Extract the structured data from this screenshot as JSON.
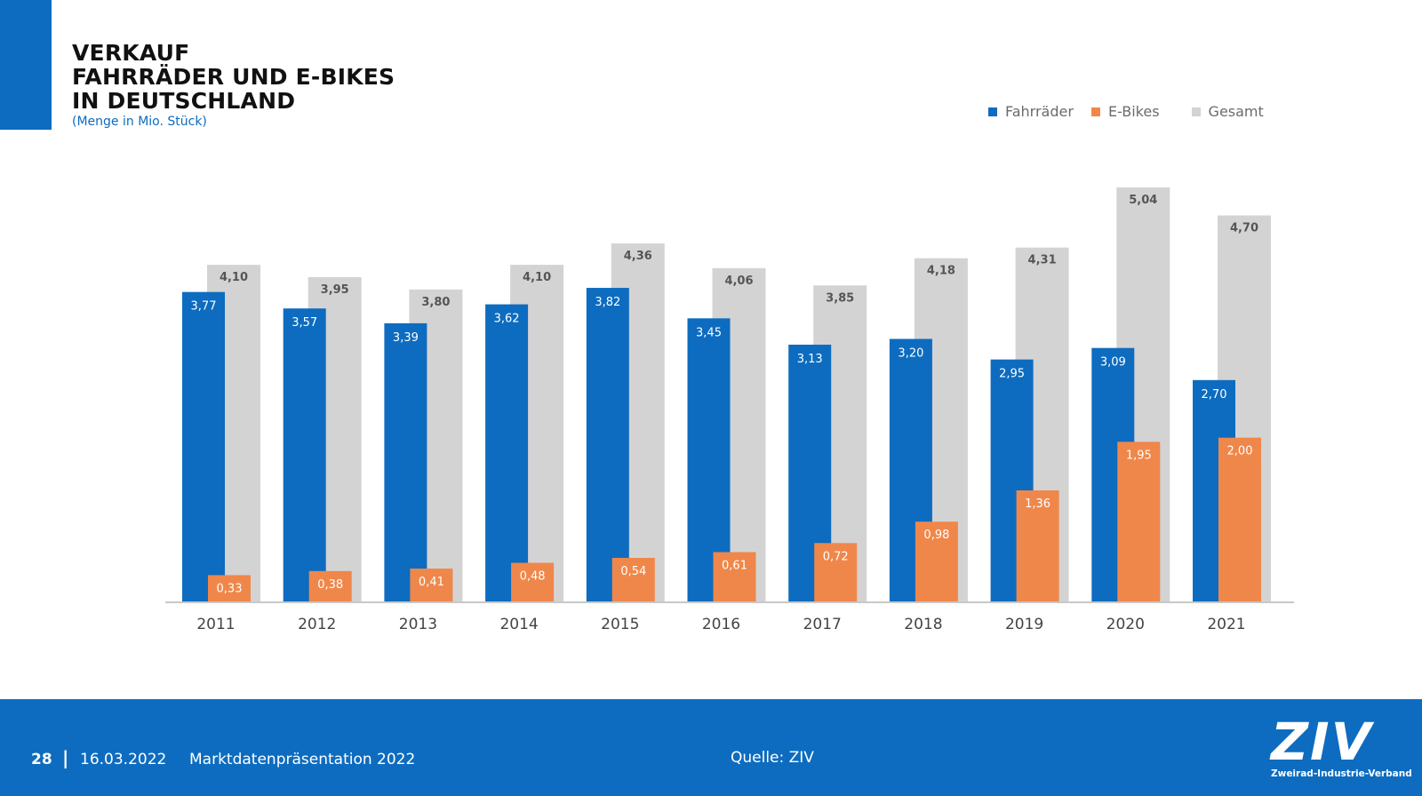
{
  "title": {
    "lines": [
      "VERKAUF",
      "FAHRRÄDER UND E-BIKES",
      "IN DEUTSCHLAND"
    ],
    "subtitle": "(Menge in Mio. Stück)"
  },
  "colors": {
    "fahrraeder": "#0d6cbf",
    "ebikes": "#f0874a",
    "gesamt": "#d4d3d3",
    "accent": "#0d6cbf"
  },
  "legend": [
    {
      "label": "Fahrräder",
      "color": "#0d6cbf"
    },
    {
      "label": "E-Bikes",
      "color": "#f0874a"
    },
    {
      "label": "Gesamt",
      "color": "#d4d3d3"
    }
  ],
  "chart_data": {
    "type": "bar",
    "categories": [
      "2011",
      "2012",
      "2013",
      "2014",
      "2015",
      "2016",
      "2017",
      "2018",
      "2019",
      "2020",
      "2021"
    ],
    "series": [
      {
        "name": "Fahrräder",
        "values": [
          3.77,
          3.57,
          3.39,
          3.62,
          3.82,
          3.45,
          3.13,
          3.2,
          2.95,
          3.09,
          2.7
        ],
        "labels": [
          "3,77",
          "3,57",
          "3,39",
          "3,62",
          "3,82",
          "3,45",
          "3,13",
          "3,20",
          "2,95",
          "3,09",
          "2,70"
        ]
      },
      {
        "name": "E-Bikes",
        "values": [
          0.33,
          0.38,
          0.41,
          0.48,
          0.54,
          0.61,
          0.72,
          0.98,
          1.36,
          1.95,
          2.0
        ],
        "labels": [
          "0,33",
          "0,38",
          "0,41",
          "0,48",
          "0,54",
          "0,61",
          "0,72",
          "0,98",
          "1,36",
          "1,95",
          "2,00"
        ]
      },
      {
        "name": "Gesamt",
        "values": [
          4.1,
          3.95,
          3.8,
          4.1,
          4.36,
          4.06,
          3.85,
          4.18,
          4.31,
          5.04,
          4.7
        ],
        "labels": [
          "4,10",
          "3,95",
          "3,80",
          "4,10",
          "4,36",
          "4,06",
          "3,85",
          "4,18",
          "4,31",
          "5,04",
          "4,70"
        ]
      }
    ],
    "ylim": [
      0,
      5.04
    ],
    "grid": false,
    "legend_position": "top-right"
  },
  "footer": {
    "page": "28",
    "separator": "|",
    "date": "16.03.2022",
    "doc_title": "Marktdatenpräsentation 2022",
    "source": "Quelle: ZIV",
    "logo_text": "ZIV",
    "logo_sub": "Zweirad-Industrie-Verband"
  }
}
